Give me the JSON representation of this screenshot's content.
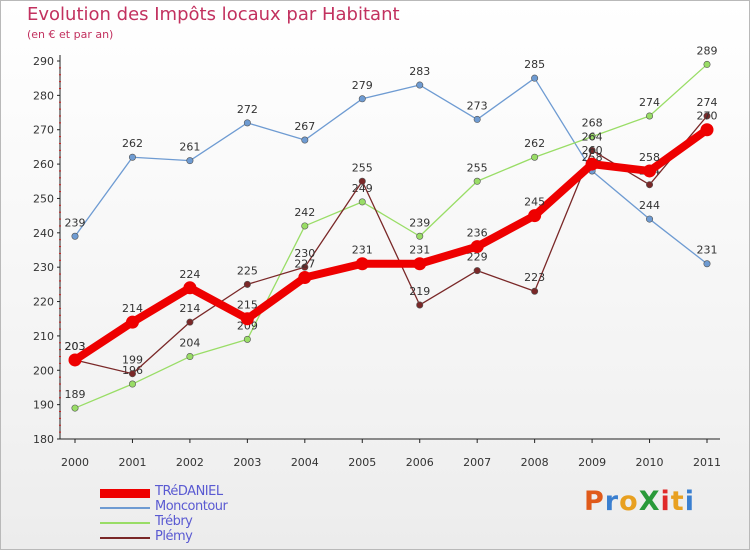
{
  "title": "Evolution des Impôts locaux par Habitant",
  "subtitle": "(en € et par an)",
  "logo": "ProXiti",
  "chart_data": {
    "type": "line",
    "title": "Evolution des Impôts locaux par Habitant",
    "subtitle": "(en € et par an)",
    "x": [
      "2000",
      "2001",
      "2002",
      "2003",
      "2004",
      "2005",
      "2006",
      "2007",
      "2008",
      "2009",
      "2010",
      "2011"
    ],
    "ylim": [
      180,
      290
    ],
    "yticks": [
      180,
      190,
      200,
      210,
      220,
      230,
      240,
      250,
      260,
      270,
      280,
      290
    ],
    "grid": false,
    "legend_position": "bottom-left",
    "series": [
      {
        "name": "TRéDANIEL",
        "color": "#ee0000",
        "values": [
          203,
          214,
          224,
          215,
          227,
          231,
          231,
          236,
          245,
          260,
          258,
          270
        ]
      },
      {
        "name": "Moncontour",
        "color": "#6e9bd2",
        "values": [
          239,
          262,
          261,
          272,
          267,
          279,
          283,
          273,
          285,
          258,
          244,
          231
        ]
      },
      {
        "name": "Trébry",
        "color": "#99dd66",
        "values": [
          189,
          196,
          204,
          209,
          242,
          249,
          239,
          255,
          262,
          268,
          274,
          289
        ]
      },
      {
        "name": "Plémy",
        "color": "#7a2828",
        "values": [
          203,
          199,
          214,
          225,
          230,
          255,
          219,
          229,
          223,
          264,
          254,
          274
        ]
      }
    ]
  }
}
